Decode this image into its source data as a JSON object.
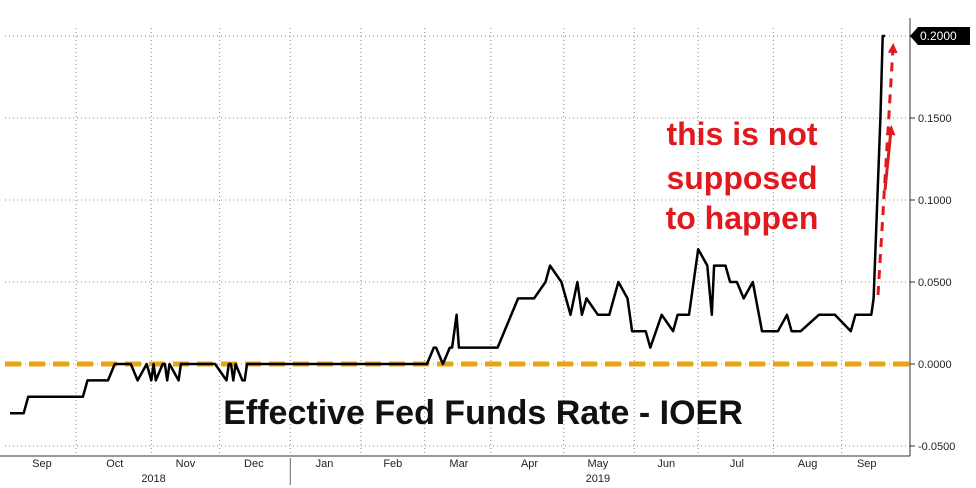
{
  "chart_data": {
    "type": "line",
    "title": "Effective Fed Funds Rate - IOER",
    "annotation": [
      "this is not",
      "supposed",
      "to happen"
    ],
    "last_value_label": "0.2000",
    "colors": {
      "series": "#000000",
      "baseline": "#e8a317",
      "annotation": "#e0191f",
      "grid": "#8a8a8a"
    },
    "grid": true,
    "y_axis_side": "right",
    "ylim": [
      -0.055,
      0.21
    ],
    "y_ticks": [
      {
        "value": 0.2,
        "label": ""
      },
      {
        "value": 0.15,
        "label": "0.1500"
      },
      {
        "value": 0.1,
        "label": "0.1000"
      },
      {
        "value": 0.05,
        "label": "0.0500"
      },
      {
        "value": 0.0,
        "label": "0.0000"
      },
      {
        "value": -0.05,
        "label": "-0.0500"
      }
    ],
    "x_months": [
      "Sep",
      "Oct",
      "Nov",
      "Dec",
      "Jan",
      "Feb",
      "Mar",
      "Apr",
      "May",
      "Jun",
      "Jul",
      "Aug",
      "Sep"
    ],
    "x_years": [
      "2018",
      "2019"
    ],
    "baseline_value": 0.0,
    "series": [
      {
        "x": [
          "2018-08-30",
          "2018-09-05",
          "2018-09-07",
          "2018-10-01",
          "2018-10-03",
          "2018-10-12",
          "2018-10-15",
          "2018-10-19",
          "2018-10-22",
          "2018-10-25",
          "2018-10-29",
          "2018-10-31",
          "2018-11-01",
          "2018-11-02",
          "2018-11-05",
          "2018-11-06",
          "2018-11-07",
          "2018-11-08",
          "2018-11-12",
          "2018-11-13",
          "2018-11-15",
          "2018-11-16",
          "2018-11-19",
          "2018-11-20",
          "2018-11-21",
          "2018-11-22",
          "2018-11-23",
          "2018-11-26",
          "2018-11-28",
          "2018-12-03",
          "2018-12-04",
          "2018-12-05",
          "2018-12-06",
          "2018-12-07",
          "2018-12-10",
          "2018-12-11",
          "2018-12-12",
          "2018-12-13",
          "2018-12-14",
          "2018-12-17",
          "2018-12-18",
          "2018-12-19",
          "2019-03-01",
          "2019-03-04",
          "2019-03-05",
          "2019-03-08",
          "2019-03-11",
          "2019-03-12",
          "2019-03-14",
          "2019-03-15",
          "2019-03-18",
          "2019-03-20",
          "2019-04-01",
          "2019-04-10",
          "2019-04-17",
          "2019-04-22",
          "2019-04-24",
          "2019-04-29",
          "2019-05-01",
          "2019-05-03",
          "2019-05-06",
          "2019-05-08",
          "2019-05-10",
          "2019-05-15",
          "2019-05-20",
          "2019-05-22",
          "2019-05-24",
          "2019-05-28",
          "2019-05-30",
          "2019-06-03",
          "2019-06-05",
          "2019-06-07",
          "2019-06-12",
          "2019-06-17",
          "2019-06-19",
          "2019-06-21",
          "2019-06-24",
          "2019-06-26",
          "2019-06-28",
          "2019-07-02",
          "2019-07-04",
          "2019-07-05",
          "2019-07-10",
          "2019-07-12",
          "2019-07-15",
          "2019-07-18",
          "2019-07-22",
          "2019-07-26",
          "2019-07-31",
          "2019-08-02",
          "2019-08-06",
          "2019-08-08",
          "2019-08-12",
          "2019-08-20",
          "2019-08-27",
          "2019-09-03",
          "2019-09-05",
          "2019-09-08",
          "2019-09-12",
          "2019-09-13",
          "2019-09-16",
          "2019-09-17",
          "2019-09-18"
        ],
        "values": [
          -0.03,
          -0.03,
          -0.02,
          -0.02,
          -0.01,
          -0.01,
          0.0,
          0.0,
          0.0,
          -0.01,
          0.0,
          -0.01,
          0.0,
          -0.01,
          0.0,
          0.0,
          -0.01,
          0.0,
          -0.01,
          0.0,
          0.0,
          0.0,
          0.0,
          0.0,
          0.0,
          0.0,
          0.0,
          0.0,
          0.0,
          -0.01,
          0.0,
          0.0,
          -0.01,
          0.0,
          -0.01,
          -0.01,
          0.0,
          0.0,
          0.0,
          0.0,
          0.0,
          0.0,
          0.0,
          0.01,
          0.01,
          0.0,
          0.01,
          0.01,
          0.03,
          0.01,
          0.01,
          0.01,
          0.01,
          0.04,
          0.04,
          0.05,
          0.06,
          0.05,
          0.04,
          0.03,
          0.05,
          0.03,
          0.04,
          0.03,
          0.03,
          0.04,
          0.05,
          0.04,
          0.02,
          0.02,
          0.02,
          0.01,
          0.03,
          0.02,
          0.03,
          0.03,
          0.03,
          0.05,
          0.07,
          0.06,
          0.03,
          0.06,
          0.06,
          0.05,
          0.05,
          0.04,
          0.05,
          0.02,
          0.02,
          0.02,
          0.03,
          0.02,
          0.02,
          0.03,
          0.03,
          0.02,
          0.03,
          0.03,
          0.03,
          0.04,
          0.15,
          0.2,
          0.2
        ]
      }
    ]
  }
}
